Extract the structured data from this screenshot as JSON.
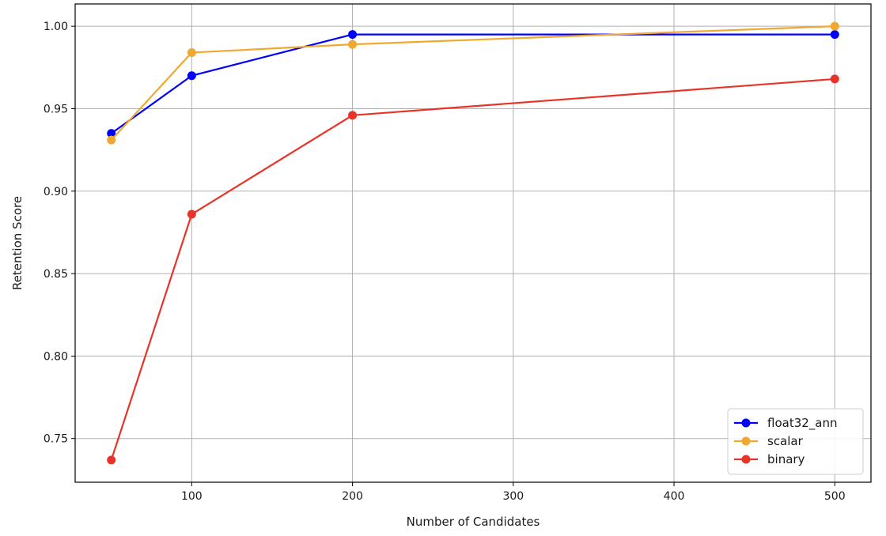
{
  "chart_data": {
    "type": "line",
    "title": "",
    "xlabel": "Number of Candidates",
    "ylabel": "Retention Score",
    "x": [
      50,
      100,
      200,
      500
    ],
    "xlim": [
      27.5,
      522.5
    ],
    "ylim": [
      0.7235,
      1.0135
    ],
    "xticks": [
      100,
      200,
      300,
      400,
      500
    ],
    "yticks": [
      0.75,
      0.8,
      0.85,
      0.9,
      0.95,
      1.0
    ],
    "xtick_labels": [
      "100",
      "200",
      "300",
      "400",
      "500"
    ],
    "ytick_labels": [
      "0.75",
      "0.80",
      "0.85",
      "0.90",
      "0.95",
      "1.00"
    ],
    "grid": true,
    "legend_position": "lower-right",
    "series": [
      {
        "name": "float32_ann",
        "color": "#0000ff",
        "values": [
          0.935,
          0.97,
          0.995,
          0.995
        ]
      },
      {
        "name": "scalar",
        "color": "#f0a830",
        "values": [
          0.931,
          0.984,
          0.989,
          1.0
        ]
      },
      {
        "name": "binary",
        "color": "#e83428",
        "values": [
          0.737,
          0.886,
          0.946,
          0.968
        ]
      }
    ]
  }
}
